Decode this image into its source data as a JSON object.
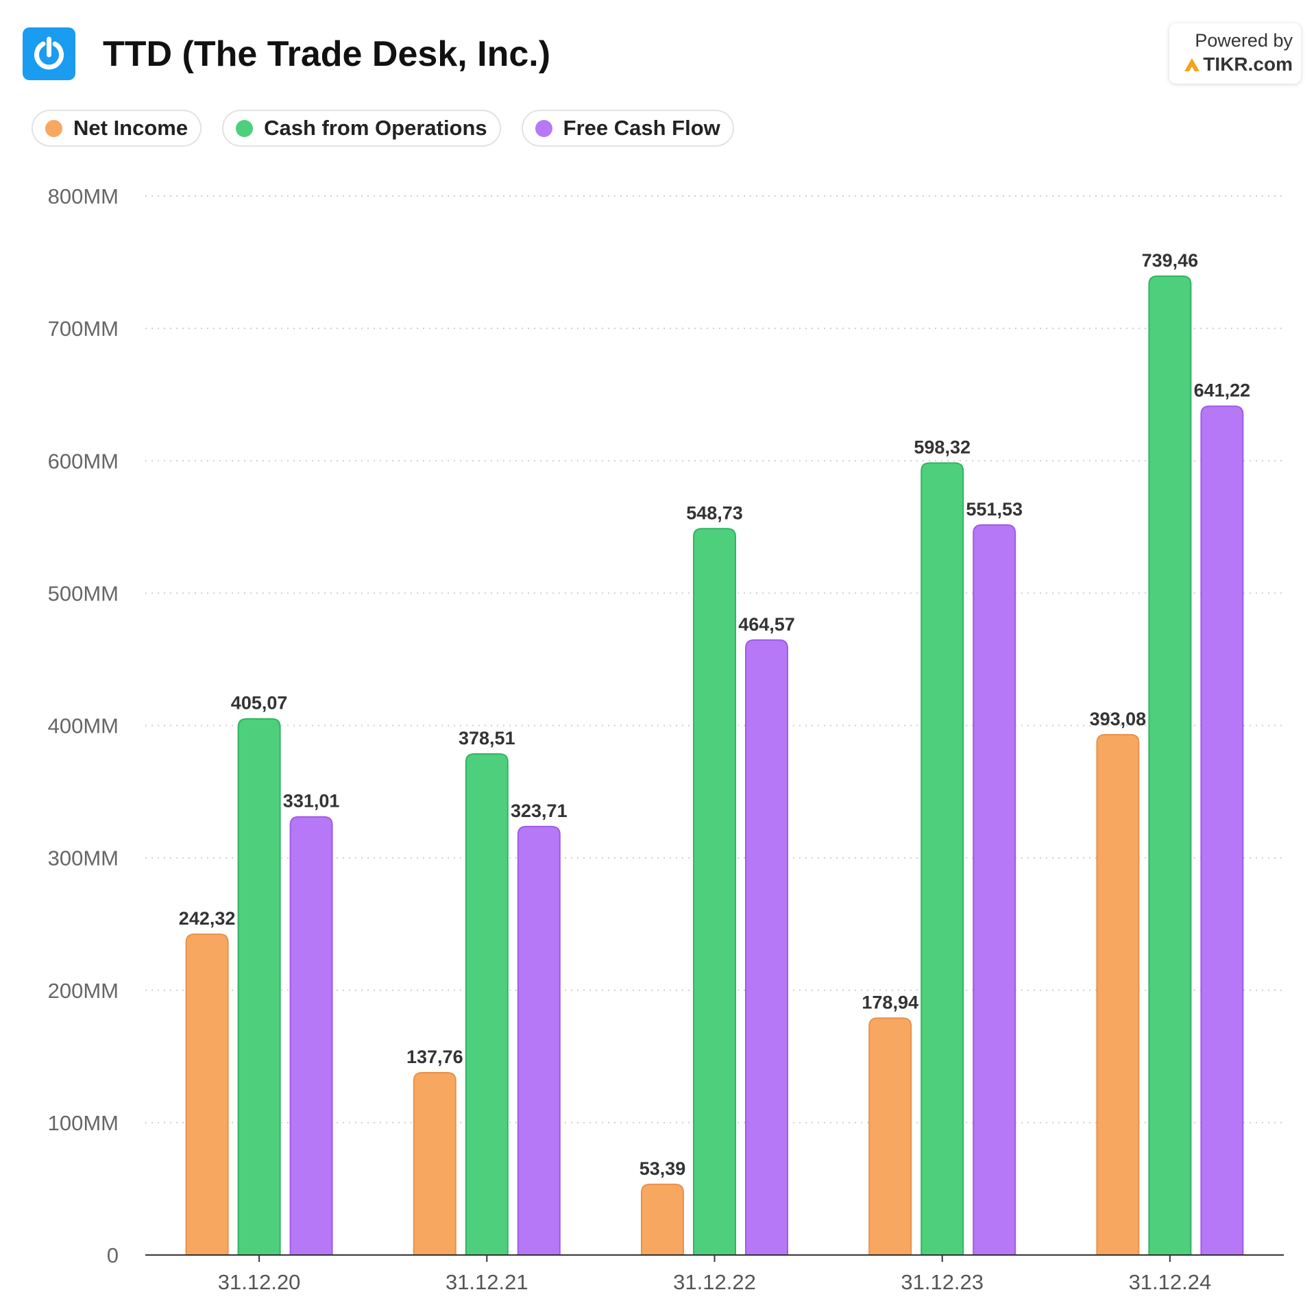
{
  "header": {
    "title": "TTD (The Trade Desk, Inc.)",
    "logo_icon": "power-icon",
    "logo_color": "#1a9cf0"
  },
  "badge": {
    "powered_by": "Powered by",
    "brand": "TIKR.com",
    "brand_icon": "tikr-triangle-icon",
    "brand_icon_color": "#f5a21c"
  },
  "chart_data": {
    "type": "bar",
    "title": "TTD (The Trade Desk, Inc.)",
    "xlabel": "",
    "ylabel": "",
    "categories": [
      "31.12.20",
      "31.12.21",
      "31.12.22",
      "31.12.23",
      "31.12.24"
    ],
    "series": [
      {
        "name": "Net Income",
        "color": "#f8a761",
        "stroke": "#e8914a",
        "values": [
          242.32,
          137.76,
          53.39,
          178.94,
          393.08
        ],
        "labels": [
          "242,32",
          "137,76",
          "53,39",
          "178,94",
          "393,08"
        ]
      },
      {
        "name": "Cash from Operations",
        "color": "#4ecf7b",
        "stroke": "#31b462",
        "values": [
          405.07,
          378.51,
          548.73,
          598.32,
          739.46
        ],
        "labels": [
          "405,07",
          "378,51",
          "548,73",
          "598,32",
          "739,46"
        ]
      },
      {
        "name": "Free Cash Flow",
        "color": "#b778f7",
        "stroke": "#9f5be5",
        "values": [
          331.01,
          323.71,
          464.57,
          551.53,
          641.22
        ],
        "labels": [
          "331,01",
          "323,71",
          "464,57",
          "551,53",
          "641,22"
        ]
      }
    ],
    "y_ticks": [
      0,
      100,
      200,
      300,
      400,
      500,
      600,
      700,
      800
    ],
    "y_tick_labels": [
      "0",
      "100MM",
      "200MM",
      "300MM",
      "400MM",
      "500MM",
      "600MM",
      "700MM",
      "800MM"
    ],
    "ylim": [
      0,
      800
    ],
    "grid": true,
    "grid_style": "dotted",
    "legend_position": "top-left"
  }
}
